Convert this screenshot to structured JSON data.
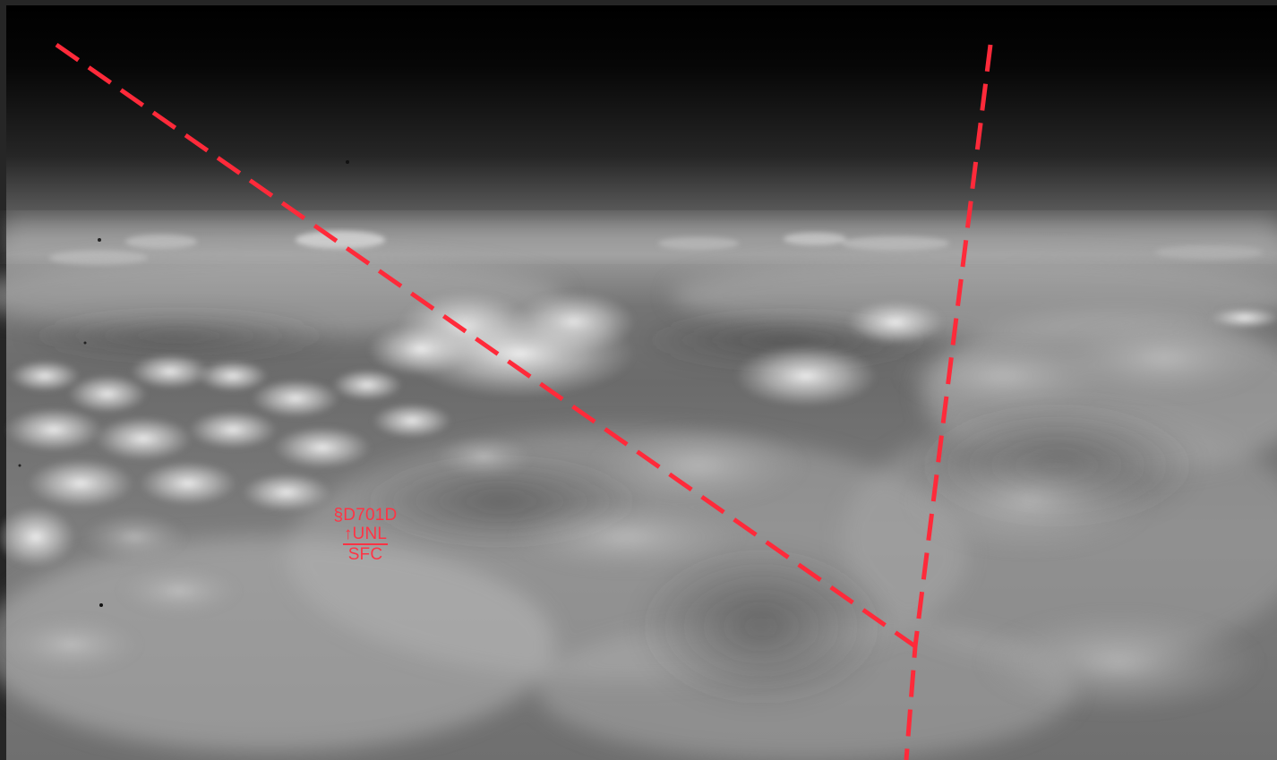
{
  "photo": {
    "subject": "aerial-cloud-layer",
    "colors": {
      "frame": "#262626",
      "overlay_red": "#ff3344"
    }
  },
  "airspace_overlay": {
    "boundary_style": "dashed",
    "label": {
      "designator": "§D701D",
      "upper_limit": "↑UNL",
      "lower_limit": "SFC"
    }
  }
}
